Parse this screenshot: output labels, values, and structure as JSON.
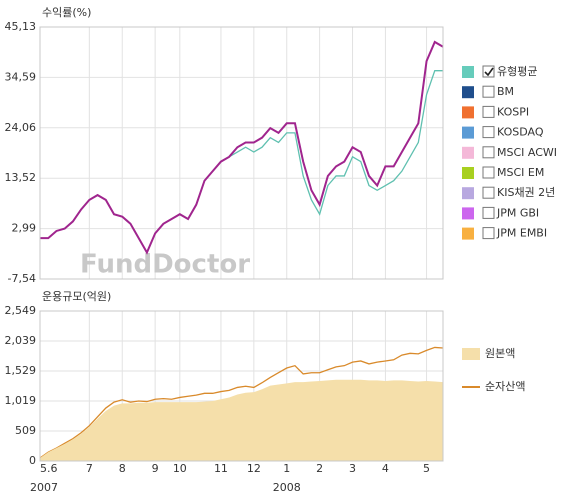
{
  "chart_data": [
    {
      "type": "line",
      "title": "수익률(%)",
      "watermark": "FundDoctor",
      "grid": true,
      "ylim": [
        -7.54,
        45.13
      ],
      "yticks": [
        {
          "value": -7.54,
          "label": "-7,54"
        },
        {
          "value": 2.99,
          "label": "2,99"
        },
        {
          "value": 13.52,
          "label": "13,52"
        },
        {
          "value": 24.06,
          "label": "24,06"
        },
        {
          "value": 34.59,
          "label": "34,59"
        },
        {
          "value": 45.13,
          "label": "45,13"
        }
      ],
      "series": [
        {
          "color": "#a0258e",
          "values": [
            1,
            1,
            2.5,
            3,
            4.5,
            7,
            9,
            10,
            9,
            6,
            5.5,
            4,
            1,
            -2,
            2,
            4,
            5,
            6,
            5,
            8,
            13,
            15,
            17,
            18,
            20,
            21,
            21,
            22,
            24,
            23,
            25,
            25,
            17,
            11,
            8,
            14,
            16,
            17,
            20,
            19,
            14,
            12,
            16,
            16,
            19,
            22,
            25,
            38,
            42,
            41
          ]
        },
        {
          "name": "유형평균",
          "color": "#5fc0b0",
          "values": [
            1,
            1,
            2.5,
            3,
            4.5,
            7,
            9,
            10,
            9,
            6,
            5.5,
            4,
            1,
            -2,
            2,
            4,
            5,
            6,
            5,
            8,
            13,
            15,
            17,
            18,
            19,
            20,
            19,
            20,
            22,
            21,
            23,
            23,
            14,
            9,
            6,
            12,
            14,
            14,
            18,
            17,
            12,
            11,
            12,
            13,
            15,
            18,
            21,
            31,
            36,
            36
          ]
        }
      ],
      "legend": [
        {
          "name": "유형평균",
          "color": "#66ccbb",
          "checked": true
        },
        {
          "name": "BM",
          "color": "#1f4e8c",
          "checked": false
        },
        {
          "name": "KOSPI",
          "color": "#f07030",
          "checked": false
        },
        {
          "name": "KOSDAQ",
          "color": "#5b9bd5",
          "checked": false
        },
        {
          "name": "MSCI ACWI",
          "color": "#f4b8d8",
          "checked": false
        },
        {
          "name": "MSCI EM",
          "color": "#a8d020",
          "checked": false
        },
        {
          "name": "KIS채권 2년",
          "color": "#b8a8e0",
          "checked": false
        },
        {
          "name": "JPM GBI",
          "color": "#cc66ee",
          "checked": false
        },
        {
          "name": "JPM EMBI",
          "color": "#f8b040",
          "checked": false
        }
      ]
    },
    {
      "type": "area",
      "title": "운용규모(억원)",
      "grid": true,
      "ylim": [
        0,
        2549
      ],
      "yticks": [
        0,
        509,
        {
          "value": 1019,
          "label": "1,019"
        },
        {
          "value": 1529,
          "label": "1,529"
        },
        {
          "value": 2039,
          "label": "2,039"
        },
        {
          "value": 2549,
          "label": "2,549"
        }
      ],
      "categories": [
        "5.6",
        null,
        null,
        null,
        null,
        null,
        "7",
        null,
        null,
        null,
        "8",
        null,
        null,
        null,
        "9",
        null,
        null,
        "10",
        null,
        null,
        null,
        null,
        "11",
        null,
        null,
        null,
        "12",
        null,
        null,
        null,
        "1",
        null,
        null,
        null,
        "2",
        null,
        null,
        null,
        "3",
        null,
        null,
        null,
        "4",
        null,
        null,
        null,
        null,
        "5",
        null,
        null
      ],
      "years": [
        {
          "year": "2007",
          "category": "5.6"
        },
        {
          "year": "2008",
          "category": "1"
        }
      ],
      "series": [
        {
          "name": "원본액",
          "style": "area",
          "color": "#f5dfaa",
          "values": [
            50,
            150,
            220,
            290,
            370,
            460,
            580,
            720,
            850,
            940,
            980,
            980,
            990,
            990,
            1000,
            1000,
            1000,
            1000,
            1000,
            1000,
            1010,
            1020,
            1050,
            1080,
            1130,
            1160,
            1170,
            1220,
            1280,
            1300,
            1320,
            1340,
            1340,
            1350,
            1360,
            1370,
            1380,
            1380,
            1380,
            1380,
            1370,
            1370,
            1360,
            1370,
            1370,
            1360,
            1350,
            1360,
            1350,
            1340
          ]
        },
        {
          "name": "순자산액",
          "style": "line",
          "color": "#d98a2b",
          "values": [
            50,
            150,
            220,
            300,
            380,
            480,
            600,
            750,
            900,
            1000,
            1040,
            1000,
            1020,
            1010,
            1050,
            1060,
            1050,
            1080,
            1100,
            1120,
            1150,
            1150,
            1180,
            1200,
            1250,
            1270,
            1250,
            1330,
            1420,
            1500,
            1580,
            1620,
            1480,
            1500,
            1500,
            1550,
            1600,
            1620,
            1680,
            1700,
            1650,
            1680,
            1700,
            1720,
            1800,
            1830,
            1820,
            1880,
            1930,
            1920
          ]
        }
      ]
    }
  ]
}
